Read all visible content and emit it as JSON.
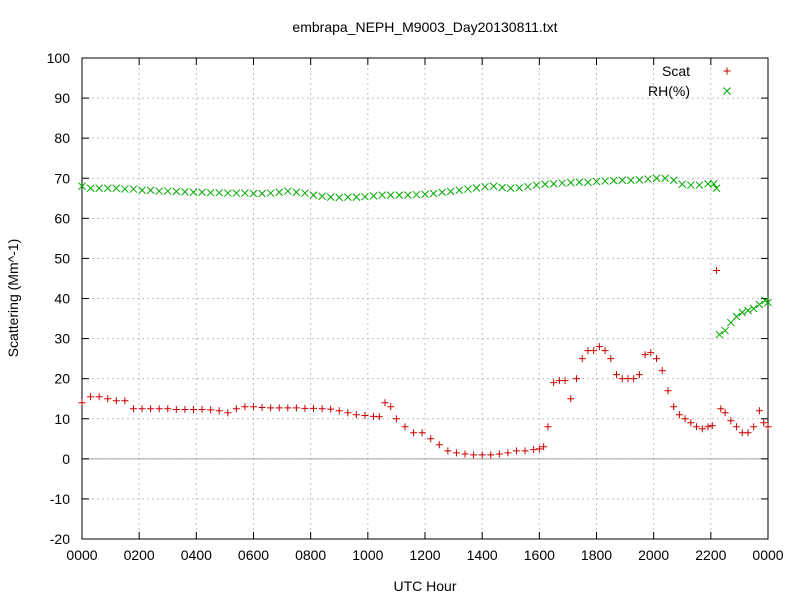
{
  "chart_data": {
    "type": "scatter",
    "title": "embrapa_NEPH_M9003_Day20130811.txt",
    "xlabel": "UTC Hour",
    "ylabel": "Scattering (Mm^-1)",
    "xlim": [
      0,
      24
    ],
    "ylim": [
      -20,
      100
    ],
    "grid": true,
    "legend_position": "top-right",
    "x_ticks": [
      {
        "value": 0,
        "label": "0000"
      },
      {
        "value": 2,
        "label": "0200"
      },
      {
        "value": 4,
        "label": "0400"
      },
      {
        "value": 6,
        "label": "0600"
      },
      {
        "value": 8,
        "label": "0800"
      },
      {
        "value": 10,
        "label": "1000"
      },
      {
        "value": 12,
        "label": "1200"
      },
      {
        "value": 14,
        "label": "1400"
      },
      {
        "value": 16,
        "label": "1600"
      },
      {
        "value": 18,
        "label": "1800"
      },
      {
        "value": 20,
        "label": "2000"
      },
      {
        "value": 22,
        "label": "2200"
      },
      {
        "value": 24,
        "label": "0000"
      }
    ],
    "y_ticks": [
      -20,
      -10,
      0,
      10,
      20,
      30,
      40,
      50,
      60,
      70,
      80,
      90,
      100
    ],
    "series": [
      {
        "name": "Scat",
        "color": "#cc0000",
        "marker": "plus",
        "x": [
          0,
          0.3,
          0.6,
          0.9,
          1.2,
          1.5,
          1.8,
          2.1,
          2.4,
          2.7,
          3.0,
          3.3,
          3.6,
          3.9,
          4.2,
          4.5,
          4.8,
          5.1,
          5.4,
          5.7,
          6.0,
          6.3,
          6.6,
          6.9,
          7.2,
          7.5,
          7.8,
          8.1,
          8.4,
          8.7,
          9.0,
          9.3,
          9.6,
          9.9,
          10.2,
          10.4,
          10.6,
          10.8,
          11.0,
          11.3,
          11.6,
          11.9,
          12.2,
          12.5,
          12.8,
          13.1,
          13.4,
          13.7,
          14.0,
          14.3,
          14.6,
          14.9,
          15.2,
          15.5,
          15.8,
          16.0,
          16.15,
          16.3,
          16.5,
          16.7,
          16.9,
          17.1,
          17.3,
          17.5,
          17.7,
          17.9,
          18.1,
          18.3,
          18.5,
          18.7,
          18.9,
          19.1,
          19.3,
          19.5,
          19.7,
          19.9,
          20.1,
          20.3,
          20.5,
          20.7,
          20.9,
          21.1,
          21.3,
          21.5,
          21.7,
          21.9,
          22.05,
          22.2,
          22.35,
          22.5,
          22.7,
          22.9,
          23.1,
          23.3,
          23.5,
          23.7,
          23.85,
          24.0
        ],
        "y": [
          14,
          15.5,
          15.5,
          15,
          14.5,
          14.5,
          12.5,
          12.5,
          12.5,
          12.5,
          12.5,
          12.3,
          12.3,
          12.3,
          12.3,
          12.2,
          12.0,
          11.5,
          12.5,
          13,
          13,
          12.8,
          12.7,
          12.7,
          12.7,
          12.7,
          12.6,
          12.6,
          12.5,
          12.4,
          12.0,
          11.5,
          11.0,
          10.8,
          10.6,
          10.5,
          14,
          13,
          10,
          8,
          6.5,
          6.5,
          5,
          3.5,
          2,
          1.5,
          1.2,
          1,
          1,
          1,
          1.2,
          1.5,
          2,
          2,
          2.3,
          2.5,
          3,
          8,
          19,
          19.5,
          19.5,
          15,
          20,
          25,
          27,
          27,
          28,
          27,
          25,
          21,
          20,
          20,
          20,
          21,
          26,
          26.5,
          25,
          22,
          17,
          13,
          11,
          10,
          9,
          8,
          7.5,
          8,
          8.3,
          47,
          12.5,
          11.5,
          9.5,
          8,
          6.5,
          6.5,
          8,
          12,
          9,
          8
        ]
      },
      {
        "name": "RH(%)",
        "color": "#00aa00",
        "marker": "cross",
        "x": [
          0,
          0.3,
          0.6,
          0.9,
          1.2,
          1.5,
          1.8,
          2.1,
          2.4,
          2.7,
          3.0,
          3.3,
          3.6,
          3.9,
          4.2,
          4.5,
          4.8,
          5.1,
          5.4,
          5.7,
          6.0,
          6.3,
          6.6,
          6.9,
          7.2,
          7.5,
          7.8,
          8.1,
          8.4,
          8.7,
          9.0,
          9.3,
          9.6,
          9.9,
          10.2,
          10.5,
          10.8,
          11.1,
          11.4,
          11.7,
          12.0,
          12.3,
          12.6,
          12.9,
          13.2,
          13.5,
          13.8,
          14.1,
          14.4,
          14.7,
          15.0,
          15.3,
          15.6,
          15.9,
          16.2,
          16.5,
          16.8,
          17.1,
          17.4,
          17.7,
          18.0,
          18.3,
          18.6,
          18.9,
          19.2,
          19.5,
          19.8,
          20.1,
          20.4,
          20.7,
          21.0,
          21.3,
          21.6,
          21.9,
          22.1,
          22.2,
          22.3,
          22.5,
          22.7,
          22.9,
          23.1,
          23.3,
          23.5,
          23.7,
          23.9,
          24.0
        ],
        "y": [
          68,
          67.5,
          67.5,
          67.5,
          67.5,
          67.3,
          67.3,
          67.0,
          67.0,
          66.8,
          66.8,
          66.7,
          66.6,
          66.5,
          66.5,
          66.4,
          66.4,
          66.3,
          66.3,
          66.3,
          66.2,
          66.2,
          66.3,
          66.5,
          66.8,
          66.5,
          66.3,
          65.8,
          65.5,
          65.3,
          65.2,
          65.3,
          65.3,
          65.4,
          65.6,
          65.8,
          65.8,
          65.8,
          65.8,
          65.9,
          66.0,
          66.2,
          66.5,
          66.7,
          67.0,
          67.3,
          67.6,
          67.9,
          68.0,
          67.7,
          67.5,
          67.6,
          67.9,
          68.3,
          68.5,
          68.6,
          68.8,
          68.9,
          69.0,
          69.0,
          69.2,
          69.3,
          69.4,
          69.5,
          69.5,
          69.6,
          69.8,
          70.0,
          70.0,
          69.5,
          68.5,
          68.3,
          68.3,
          68.6,
          68.6,
          67.5,
          31,
          32,
          34,
          35.5,
          36.5,
          37,
          37.5,
          38.5,
          39.5,
          39.0
        ]
      }
    ]
  }
}
